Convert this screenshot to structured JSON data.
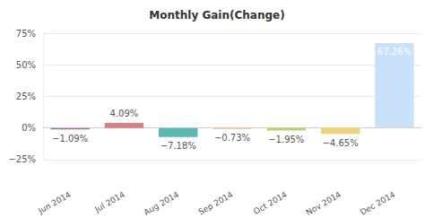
{
  "chart_data": {
    "type": "bar",
    "title": "Monthly Gain(Change)",
    "categories": [
      "Jun 2014",
      "Jul 2014",
      "Aug 2014",
      "Sep 2014",
      "Oct 2014",
      "Nov 2014",
      "Dec 2014"
    ],
    "values": [
      -1.09,
      4.09,
      -7.18,
      -0.73,
      -1.95,
      -4.65,
      67.26
    ],
    "value_labels": [
      "−1.09%",
      "4.09%",
      "−7.18%",
      "−0.73%",
      "−1.95%",
      "−4.65%",
      "67.26%"
    ],
    "colors": [
      "#a66f9e",
      "#e07f7f",
      "#5bb8b4",
      "#f3bf8c",
      "#b3d66e",
      "#f3d474",
      "#c9e1f9"
    ],
    "ylim": [
      -25,
      75
    ],
    "yticks": [
      {
        "value": -25,
        "label": "−25%"
      },
      {
        "value": 0,
        "label": "0%"
      },
      {
        "value": 25,
        "label": "25%"
      },
      {
        "value": 50,
        "label": "50%"
      },
      {
        "value": 75,
        "label": "75%"
      }
    ],
    "grid": true,
    "data_labels": true
  }
}
